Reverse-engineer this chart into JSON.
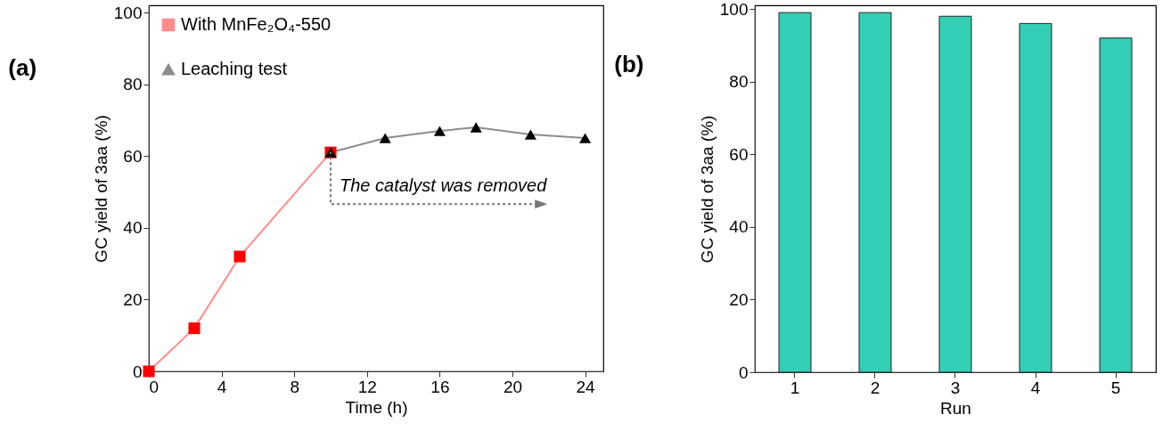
{
  "chart_data": [
    {
      "type": "line",
      "title": "(a)",
      "xlabel": "Time (h)",
      "ylabel": "GC yield of 3aa (%)",
      "xlim": [
        0,
        25
      ],
      "xticks": [
        0,
        4,
        8,
        12,
        16,
        20,
        24
      ],
      "ylim": [
        0,
        102
      ],
      "yticks": [
        0,
        20,
        40,
        60,
        80,
        100
      ],
      "legend": "top left",
      "grid": false,
      "series": [
        {
          "name": "With MnFe₂O₄-550",
          "color": "#ff0000",
          "marker": "square",
          "x": [
            0,
            2.5,
            5,
            10
          ],
          "values": [
            0,
            12,
            32,
            61
          ]
        },
        {
          "name": "Leaching test",
          "color": "#000000",
          "marker": "triangle",
          "x": [
            10,
            13,
            16,
            18,
            21,
            24
          ],
          "values": [
            61,
            65,
            67,
            68,
            66,
            65
          ]
        }
      ],
      "annotations": [
        "The catalyst was removed"
      ]
    },
    {
      "type": "bar",
      "title": "(b)",
      "xlabel": "Run",
      "ylabel": "GC yield of 3aa (%)",
      "categories": [
        "1",
        "2",
        "3",
        "4",
        "5"
      ],
      "values": [
        99,
        99,
        98,
        96,
        92
      ],
      "color": "#33cfb5",
      "ylim": [
        0,
        101
      ],
      "yticks": [
        0,
        20,
        40,
        60,
        80,
        100
      ],
      "grid": false
    }
  ]
}
